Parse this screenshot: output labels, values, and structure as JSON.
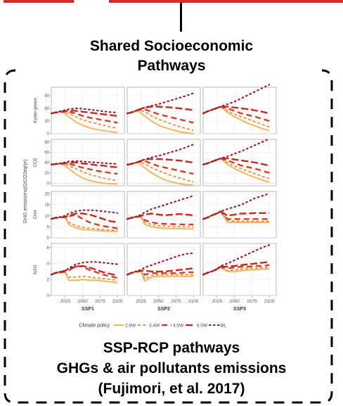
{
  "header": {
    "line1": "Shared Socioeconomic",
    "line2": "Pathways"
  },
  "caption": {
    "line1": "SSP-RCP pathways",
    "line2": "GHGs & air pollutants emissions",
    "line3": "(Fujimori, et al. 2017)"
  },
  "colors": {
    "2.6W": "#f5b75b",
    "3.4W": "#ee8a3e",
    "4.5W": "#dc3b26",
    "6.0W": "#c62a21",
    "BL": "#9b1d2c",
    "accent_bar": "#d82b23"
  },
  "chart_data": {
    "type": "line",
    "facet_columns": [
      "SSP1",
      "SSP2",
      "SSP3"
    ],
    "y_axis_title": "GHG emissions(GtCO2eq/yr)",
    "x_ticks": [
      2025,
      2050,
      2075,
      2100
    ],
    "x_range": [
      2005,
      2110
    ],
    "legend": {
      "title": "Climate policy",
      "entries": [
        "2.6W",
        "3.4W",
        "4.5W",
        "6.0W",
        "BL"
      ],
      "placement": "bottom"
    },
    "grid": true,
    "rows": [
      {
        "label": "Kyoto gases",
        "ylim": [
          0,
          110
        ],
        "yticks": [
          0,
          30,
          60,
          90
        ],
        "years": [
          2005,
          2010,
          2020,
          2030,
          2040,
          2050,
          2060,
          2070,
          2080,
          2090,
          2100
        ],
        "facets": {
          "SSP1": {
            "2.6W": [
              48,
              50,
              52,
              40,
              28,
              20,
              14,
              10,
              7,
              5,
              3
            ],
            "3.4W": [
              48,
              50,
              52,
              48,
              40,
              33,
              28,
              24,
              20,
              16,
              13
            ],
            "4.5W": [
              48,
              50,
              52,
              52,
              48,
              42,
              38,
              35,
              32,
              29,
              26
            ],
            "6.0W": [
              48,
              50,
              52,
              55,
              54,
              52,
              50,
              48,
              46,
              44,
              42
            ],
            "BL": [
              48,
              50,
              54,
              58,
              60,
              59,
              57,
              55,
              53,
              51,
              50
            ]
          },
          "SSP2": {
            "2.6W": [
              48,
              50,
              54,
              42,
              30,
              20,
              14,
              9,
              5,
              2,
              0
            ],
            "3.4W": [
              48,
              50,
              56,
              52,
              42,
              34,
              28,
              22,
              17,
              12,
              8
            ],
            "4.5W": [
              48,
              50,
              56,
              58,
              52,
              46,
              42,
              38,
              34,
              30,
              26
            ],
            "6.0W": [
              48,
              50,
              56,
              62,
              64,
              64,
              63,
              62,
              60,
              58,
              56
            ],
            "BL": [
              48,
              50,
              56,
              62,
              66,
              70,
              75,
              80,
              85,
              90,
              96
            ]
          },
          "SSP3": {
            "2.6W": [
              48,
              52,
              58,
              64,
              50,
              40,
              32,
              24,
              18,
              12,
              7
            ],
            "3.4W": [
              48,
              52,
              58,
              64,
              54,
              46,
              40,
              34,
              28,
              22,
              16
            ],
            "4.5W": [
              48,
              52,
              58,
              64,
              60,
              54,
              48,
              44,
              40,
              35,
              30
            ],
            "6.0W": [
              48,
              52,
              58,
              64,
              64,
              62,
              60,
              58,
              55,
              52,
              48
            ],
            "BL": [
              48,
              52,
              58,
              64,
              70,
              76,
              84,
              92,
              100,
              108,
              116
            ]
          }
        }
      },
      {
        "label": "CO2",
        "ylim": [
          -5,
          85
        ],
        "yticks": [
          0,
          20,
          40,
          60,
          80
        ],
        "years": [
          2005,
          2010,
          2020,
          2030,
          2040,
          2050,
          2060,
          2070,
          2080,
          2090,
          2100
        ],
        "facets": {
          "SSP1": {
            "2.6W": [
              36,
              37,
              38,
              28,
              18,
              10,
              5,
              2,
              0,
              -1,
              -1
            ],
            "3.4W": [
              36,
              37,
              38,
              34,
              28,
              22,
              17,
              13,
              10,
              7,
              5
            ],
            "4.5W": [
              36,
              37,
              38,
              38,
              34,
              30,
              27,
              24,
              22,
              20,
              18
            ],
            "6.0W": [
              36,
              37,
              38,
              40,
              40,
              38,
              37,
              35,
              34,
              32,
              31
            ],
            "BL": [
              36,
              37,
              39,
              42,
              43,
              42,
              41,
              40,
              39,
              38,
              37
            ]
          },
          "SSP2": {
            "2.6W": [
              36,
              37,
              40,
              30,
              20,
              12,
              6,
              2,
              -1,
              -3,
              -4
            ],
            "3.4W": [
              36,
              37,
              41,
              38,
              30,
              24,
              19,
              14,
              10,
              6,
              3
            ],
            "4.5W": [
              36,
              37,
              41,
              43,
              38,
              33,
              30,
              27,
              24,
              21,
              18
            ],
            "6.0W": [
              36,
              37,
              41,
              46,
              47,
              47,
              46,
              45,
              44,
              42,
              40
            ],
            "BL": [
              36,
              37,
              41,
              46,
              50,
              53,
              57,
              61,
              65,
              70,
              75
            ]
          },
          "SSP3": {
            "2.6W": [
              36,
              38,
              43,
              48,
              36,
              28,
              22,
              16,
              11,
              6,
              2
            ],
            "3.4W": [
              36,
              38,
              43,
              48,
              40,
              33,
              28,
              23,
              18,
              13,
              9
            ],
            "4.5W": [
              36,
              38,
              43,
              48,
              44,
              39,
              34,
              31,
              28,
              24,
              20
            ],
            "6.0W": [
              36,
              38,
              43,
              48,
              48,
              46,
              44,
              42,
              40,
              37,
              34
            ],
            "BL": [
              36,
              38,
              43,
              48,
              52,
              57,
              62,
              68,
              74,
              80,
              86
            ]
          }
        }
      },
      {
        "label": "CH4",
        "ylim": [
          0,
          21
        ],
        "yticks": [
          0,
          5,
          10,
          15,
          20
        ],
        "years": [
          2005,
          2010,
          2020,
          2025,
          2030,
          2040,
          2050,
          2060,
          2070,
          2080,
          2090,
          2100
        ],
        "facets": {
          "SSP1": {
            "2.6W": [
              8.5,
              9,
              9.3,
              9.3,
              6,
              4.5,
              3.8,
              3.5,
              3.3,
              3.1,
              3,
              2.9
            ],
            "3.4W": [
              8.5,
              9,
              9.3,
              9.3,
              7,
              5.5,
              4.8,
              4.3,
              4,
              3.7,
              3.5,
              3.3
            ],
            "4.5W": [
              8.5,
              9,
              9.3,
              9.3,
              9.6,
              10.5,
              8.5,
              7,
              6,
              5.3,
              4.8,
              4.3
            ],
            "6.0W": [
              8.5,
              9,
              9.3,
              9.5,
              10,
              11,
              11,
              10.5,
              9.5,
              8.5,
              7.5,
              7
            ],
            "BL": [
              8.5,
              9,
              9.6,
              10,
              11,
              12,
              12.5,
              12.5,
              12.3,
              12,
              11.6,
              11.2
            ]
          },
          "SSP2": {
            "2.6W": [
              8.5,
              9,
              9.5,
              9.5,
              6,
              5,
              4.5,
              4.3,
              4.2,
              4.1,
              4,
              4
            ],
            "3.4W": [
              8.5,
              9,
              9.5,
              9.6,
              7,
              6,
              5.5,
              5.3,
              5.2,
              5.1,
              5,
              5
            ],
            "4.5W": [
              8.5,
              9,
              9.5,
              9.8,
              8,
              7,
              6.5,
              6.3,
              6.2,
              6.1,
              6,
              6
            ],
            "6.0W": [
              8.5,
              9,
              9.6,
              10,
              10.5,
              11,
              10.5,
              10.2,
              10.5,
              10.8,
              10.5,
              10.2
            ],
            "BL": [
              8.5,
              9,
              9.8,
              10.5,
              11.5,
              13,
              14,
              15,
              16,
              17,
              18,
              19
            ]
          },
          "SSP3": {
            "2.6W": [
              8.5,
              9,
              10.5,
              11,
              12,
              7,
              7,
              7,
              7,
              7,
              7,
              7
            ],
            "3.4W": [
              8.5,
              9,
              10.5,
              11,
              12,
              8,
              7.5,
              7.5,
              7.5,
              7.5,
              7.5,
              7.5
            ],
            "4.5W": [
              8.5,
              9,
              10.5,
              11,
              12,
              8.5,
              8.5,
              8.5,
              8.5,
              8.5,
              8.5,
              8.5
            ],
            "6.0W": [
              8.5,
              9,
              10.5,
              11,
              12,
              10,
              10.5,
              11,
              11,
              11.2,
              11.2,
              11.3
            ],
            "BL": [
              8.5,
              9,
              10.5,
              11,
              12,
              13,
              14,
              15,
              16.5,
              18,
              19,
              20
            ]
          }
        }
      },
      {
        "label": "N2O",
        "ylim": [
          0,
          6.5
        ],
        "yticks": [
          0,
          2,
          4,
          6
        ],
        "years": [
          2005,
          2010,
          2020,
          2025,
          2030,
          2040,
          2050,
          2060,
          2070,
          2080,
          2090,
          2100
        ],
        "facets": {
          "SSP1": {
            "2.6W": [
              2.6,
              2.8,
              2.9,
              2.9,
              1.9,
              1.9,
              2,
              1.9,
              1.9,
              1.8,
              1.7,
              1.6
            ],
            "3.4W": [
              2.6,
              2.8,
              2.9,
              2.9,
              2.3,
              2.3,
              2.4,
              2.3,
              2.2,
              2.1,
              2,
              1.9
            ],
            "4.5W": [
              2.6,
              2.8,
              2.9,
              3,
              3.1,
              3.7,
              3.6,
              3.2,
              2.9,
              2.6,
              2.4,
              2.2
            ],
            "6.0W": [
              2.6,
              2.8,
              3,
              3.1,
              3.3,
              3.6,
              3.7,
              3.5,
              3.2,
              2.9,
              2.7,
              2.5
            ],
            "BL": [
              2.6,
              2.8,
              3,
              3.1,
              3.4,
              3.9,
              4.1,
              4.2,
              4.2,
              4.1,
              4,
              3.9
            ]
          },
          "SSP2": {
            "2.6W": [
              2.6,
              2.8,
              3,
              3,
              1.8,
              2.3,
              2.4,
              2.4,
              2.4,
              2.4,
              2.4,
              2.4
            ],
            "3.4W": [
              2.6,
              2.8,
              3,
              3,
              2.1,
              2.5,
              2.6,
              2.6,
              2.6,
              2.6,
              2.6,
              2.6
            ],
            "4.5W": [
              2.6,
              2.8,
              3,
              3.1,
              2.6,
              2.8,
              2.8,
              2.8,
              2.8,
              2.8,
              2.9,
              2.9
            ],
            "6.0W": [
              2.6,
              2.8,
              3,
              3.1,
              3.1,
              3,
              3,
              3,
              3.1,
              3.2,
              3.3,
              3.4
            ],
            "BL": [
              2.6,
              2.8,
              3.1,
              3.2,
              3.5,
              3.8,
              4.1,
              4.4,
              4.7,
              5,
              5.2,
              5.3
            ]
          },
          "SSP3": {
            "2.6W": [
              2.6,
              2.8,
              3.1,
              3.3,
              3.5,
              3,
              3,
              3.1,
              3.2,
              3.2,
              3.3,
              3.3
            ],
            "3.4W": [
              2.6,
              2.8,
              3.1,
              3.3,
              3.5,
              3.1,
              3.2,
              3.3,
              3.4,
              3.4,
              3.5,
              3.5
            ],
            "4.5W": [
              2.6,
              2.8,
              3.1,
              3.3,
              3.6,
              3.4,
              3.5,
              3.6,
              3.6,
              3.7,
              3.7,
              3.8
            ],
            "6.0W": [
              2.6,
              2.8,
              3.1,
              3.3,
              3.6,
              3.6,
              3.7,
              3.8,
              3.9,
              4,
              4.1,
              4.2
            ],
            "BL": [
              2.6,
              2.8,
              3.1,
              3.3,
              3.7,
              4,
              4.4,
              4.8,
              5.2,
              5.6,
              6,
              6.3
            ]
          }
        }
      }
    ]
  }
}
